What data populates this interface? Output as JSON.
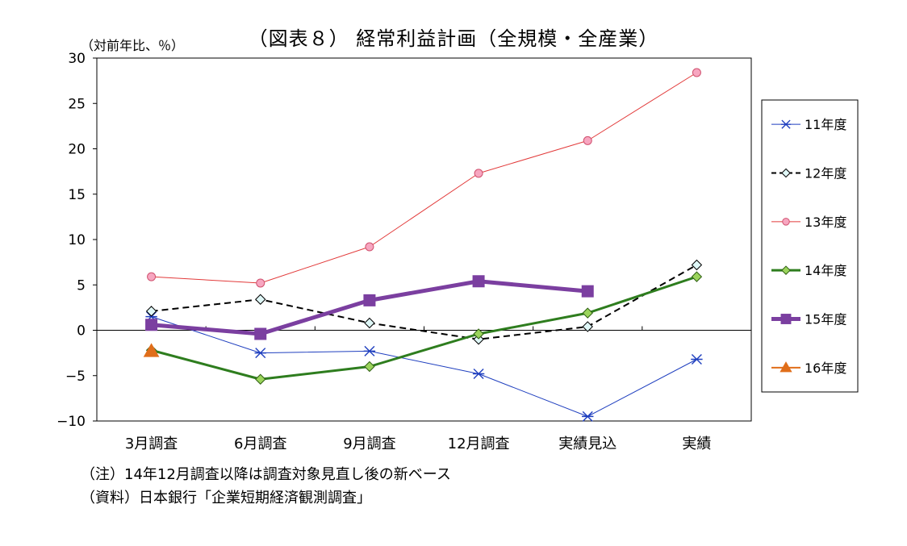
{
  "chart_data": {
    "type": "line",
    "title": "（図表８） 経常利益計画（全規模・全産業）",
    "unit_label": "（対前年比、％）",
    "categories": [
      "3月調査",
      "6月調査",
      "9月調査",
      "12月調査",
      "実績見込",
      "実績"
    ],
    "yticks": [
      "30",
      "25",
      "20",
      "15",
      "10",
      "5",
      "0",
      "−5",
      "−10"
    ],
    "ylim": [
      -10,
      30
    ],
    "grid": false,
    "legend_position": "right",
    "series": [
      {
        "name": "11年度",
        "values": [
          1.5,
          -2.5,
          -2.3,
          -4.8,
          -9.5,
          -3.2
        ],
        "color": "#1f3fbf",
        "marker": "asterisk",
        "dash": false,
        "width": 1
      },
      {
        "name": "12年度",
        "values": [
          2.1,
          3.4,
          0.8,
          -1.0,
          0.4,
          7.2
        ],
        "color": "#000000",
        "marker": "diamond-open",
        "dash": true,
        "width": 2
      },
      {
        "name": "13年度",
        "values": [
          5.9,
          5.2,
          9.2,
          17.3,
          20.9,
          28.4
        ],
        "color": "#e23a3a",
        "marker": "circle-pink",
        "dash": false,
        "width": 1
      },
      {
        "name": "14年度",
        "values": [
          -2.2,
          -5.4,
          -4.0,
          -0.4,
          1.9,
          5.9
        ],
        "color": "#2e7d1e",
        "marker": "diamond-green",
        "dash": false,
        "width": 3
      },
      {
        "name": "15年度",
        "values": [
          0.6,
          -0.4,
          3.3,
          5.4,
          4.3,
          null
        ],
        "color": "#7b3fa0",
        "marker": "square",
        "dash": false,
        "width": 5
      },
      {
        "name": "16年度",
        "values": [
          -2.3,
          null,
          null,
          null,
          null,
          null
        ],
        "color": "#e06e1a",
        "marker": "triangle",
        "dash": false,
        "width": 2
      }
    ]
  },
  "notes": [
    "（注）14年12月調査以降は調査対象見直し後の新ベース",
    "（資料）日本銀行「企業短期経済観測調査」"
  ]
}
